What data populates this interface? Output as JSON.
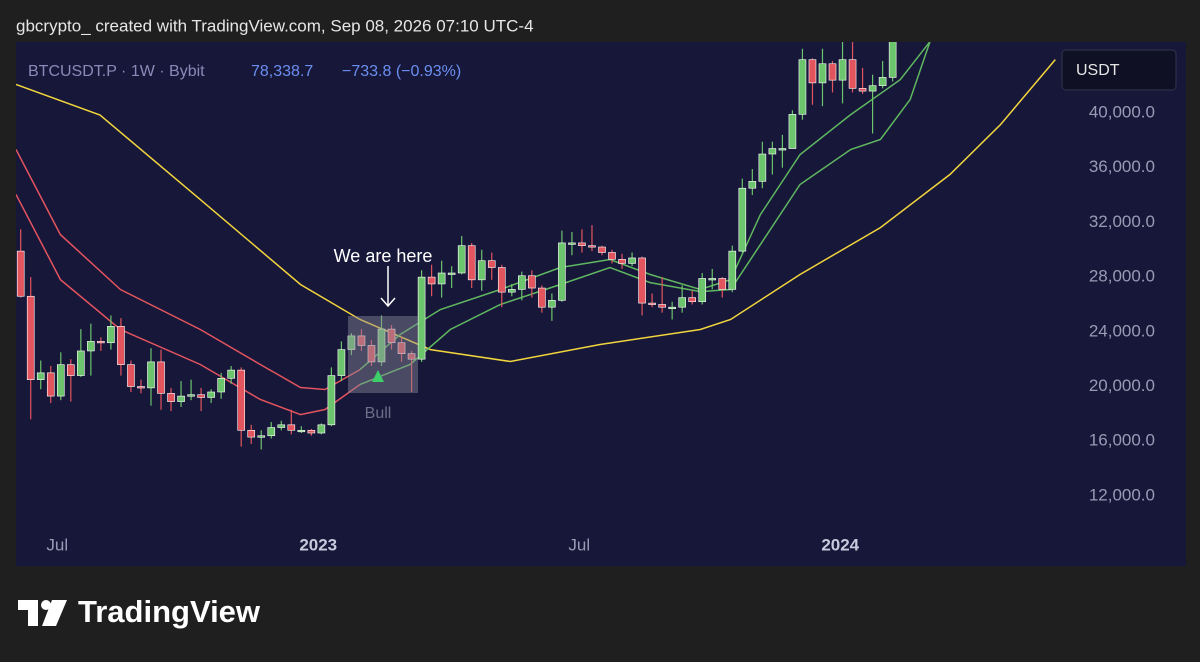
{
  "header": "gbcrypto_ created with TradingView.com, Sep 08, 2026 07:10 UTC-4",
  "footer": {
    "brand": "TradingView"
  },
  "chart_data": {
    "type": "candlestick",
    "symbol": "BTCUSDT.P · 1W · Bybit",
    "last_price": "78,338.7",
    "change": "−733.8 (−0.93%)",
    "currency": "USDT",
    "up_color": "#6cc46c",
    "down_color": "#e2545e",
    "xlim": [
      2022.421,
      2024.421
    ],
    "xticks": [
      {
        "value": 2022.5,
        "label": "Jul"
      },
      {
        "value": 2023.0,
        "label": "2023"
      },
      {
        "value": 2023.5,
        "label": "Jul"
      },
      {
        "value": 2024.0,
        "label": "2024"
      }
    ],
    "ylim": [
      6950,
      45190
    ],
    "yticks": [
      {
        "value": 12000,
        "label": "12,000.0"
      },
      {
        "value": 16000,
        "label": "16,000.0"
      },
      {
        "value": 20000,
        "label": "20,000.0"
      },
      {
        "value": 24000,
        "label": "24,000.0"
      },
      {
        "value": 28000,
        "label": "28,000.0"
      },
      {
        "value": 32000,
        "label": "32,000.0"
      },
      {
        "value": 36000,
        "label": "36,000.0"
      },
      {
        "value": 40000,
        "label": "40,000.0"
      }
    ],
    "x": [
      2022.43,
      2022.4492,
      2022.4684,
      2022.4876,
      2022.5068,
      2022.526,
      2022.5452,
      2022.5644,
      2022.5836,
      2022.6028,
      2022.622,
      2022.6412,
      2022.6604,
      2022.6796,
      2022.6988,
      2022.718,
      2022.7372,
      2022.7564,
      2022.7756,
      2022.7948,
      2022.814,
      2022.8332,
      2022.8524,
      2022.8716,
      2022.8908,
      2022.91,
      2022.9292,
      2022.9484,
      2022.9676,
      2022.9868,
      2023.006,
      2023.0252,
      2023.0444,
      2023.0636,
      2023.0828,
      2023.102,
      2023.1212,
      2023.1404,
      2023.1596,
      2023.1788,
      2023.198,
      2023.2172,
      2023.2364,
      2023.2556,
      2023.2748,
      2023.294,
      2023.3132,
      2023.3324,
      2023.3516,
      2023.3708,
      2023.39,
      2023.4092,
      2023.4284,
      2023.4476,
      2023.4668,
      2023.486,
      2023.5052,
      2023.5244,
      2023.5436,
      2023.5628,
      2023.582,
      2023.6012,
      2023.6204,
      2023.6396,
      2023.6588,
      2023.678,
      2023.6972,
      2023.7164,
      2023.7356,
      2023.7548,
      2023.774,
      2023.7932,
      2023.8124,
      2023.8316,
      2023.8508,
      2023.87,
      2023.8892,
      2023.9084,
      2023.9276,
      2023.9468,
      2023.966,
      2023.9852,
      2024.0044,
      2024.0236,
      2024.0428,
      2024.062,
      2024.0812,
      2024.1004
    ],
    "open": [
      29900,
      26600,
      20500,
      21000,
      19300,
      21600,
      20800,
      22600,
      23300,
      23200,
      24400,
      21600,
      20000,
      19900,
      21800,
      19500,
      18900,
      19300,
      19400,
      19200,
      19600,
      20600,
      21200,
      16800,
      16300,
      16400,
      17000,
      17200,
      16800,
      16800,
      16600,
      17200,
      20800,
      22700,
      23700,
      23000,
      21800,
      24200,
      23200,
      22400,
      22000,
      28000,
      27500,
      28300,
      28300,
      30300,
      27800,
      29200,
      28700,
      26900,
      27100,
      28100,
      27200,
      25800,
      26300,
      30500,
      30500,
      30300,
      30200,
      29800,
      29300,
      29000,
      29400,
      26100,
      26000,
      25800,
      25800,
      26500,
      26200,
      27900,
      27900,
      27100,
      29900,
      34500,
      35000,
      37000,
      37400,
      37400,
      39900,
      43900,
      42200,
      43600,
      42400,
      43900,
      41800,
      41600,
      42000,
      42600
    ],
    "high": [
      31500,
      28000,
      21900,
      21500,
      22500,
      22000,
      24200,
      24600,
      23600,
      25200,
      25000,
      21900,
      20500,
      22800,
      22700,
      19900,
      20400,
      20500,
      19900,
      19800,
      21000,
      21500,
      21400,
      17200,
      16800,
      17400,
      17500,
      18300,
      17100,
      16900,
      17300,
      21400,
      23300,
      23900,
      24200,
      23400,
      25200,
      24500,
      23600,
      22600,
      28500,
      28900,
      29200,
      28800,
      31000,
      30500,
      30000,
      29800,
      28900,
      27500,
      28400,
      28500,
      27400,
      26800,
      31400,
      31300,
      31500,
      31800,
      30300,
      30000,
      29700,
      29800,
      29500,
      26800,
      28000,
      26200,
      27400,
      27000,
      28300,
      28600,
      28000,
      30300,
      35200,
      35900,
      37900,
      37900,
      38400,
      40200,
      44700,
      44000,
      44700,
      43800,
      45900,
      48900,
      43300,
      42800,
      43800,
      48900
    ],
    "low": [
      26500,
      17600,
      19800,
      18800,
      19000,
      18900,
      20700,
      20800,
      22600,
      22700,
      20800,
      19600,
      19500,
      18600,
      18300,
      18200,
      18500,
      19000,
      18200,
      18800,
      19100,
      20200,
      15600,
      15800,
      15400,
      16200,
      16800,
      16500,
      16600,
      16400,
      16500,
      17100,
      20400,
      22300,
      22600,
      21500,
      21500,
      22700,
      21800,
      19600,
      21800,
      26600,
      26500,
      27200,
      28200,
      27200,
      27000,
      27800,
      25800,
      26600,
      26300,
      26500,
      25400,
      24800,
      26200,
      29600,
      29800,
      29900,
      29600,
      29000,
      28600,
      28800,
      25200,
      25800,
      25400,
      24900,
      25400,
      26000,
      26000,
      27100,
      26500,
      26900,
      29800,
      34000,
      34500,
      35500,
      36000,
      37400,
      39500,
      40600,
      40500,
      41500,
      40700,
      41500,
      41400,
      38500,
      41800,
      42300
    ],
    "close": [
      26600,
      20500,
      21000,
      19300,
      21600,
      20800,
      22600,
      23300,
      23200,
      24400,
      21600,
      20000,
      19900,
      21800,
      19500,
      18900,
      19300,
      19400,
      19200,
      19600,
      20600,
      21200,
      16800,
      16300,
      16400,
      17000,
      17200,
      16800,
      16800,
      16600,
      17200,
      20800,
      22700,
      23700,
      23000,
      21800,
      24200,
      23200,
      22400,
      22000,
      28000,
      27500,
      28300,
      28300,
      30300,
      27800,
      29200,
      28700,
      26900,
      27100,
      28100,
      27200,
      25800,
      26300,
      30500,
      30500,
      30300,
      30200,
      29800,
      29300,
      29000,
      29400,
      26100,
      26000,
      25800,
      25800,
      26500,
      26200,
      27900,
      27900,
      27100,
      29900,
      34500,
      35000,
      37000,
      37400,
      37400,
      39900,
      43900,
      42200,
      43600,
      42400,
      43900,
      41800,
      41600,
      42000,
      42600,
      48300
    ],
    "lines": [
      {
        "color": "#f2d53c",
        "x": [
          2022.421,
          2022.582,
          2022.774,
          2022.966,
          2023.08,
          2023.215,
          2023.368,
          2023.54,
          2023.732,
          2023.79,
          2023.923,
          2024.077,
          2024.21,
          2024.307,
          2024.412
        ],
        "values": [
          42080,
          39850,
          33670,
          27460,
          24900,
          22700,
          21830,
          23070,
          24170,
          24900,
          28190,
          31620,
          35500,
          39150,
          43900
        ]
      },
      {
        "color": "#e2545e",
        "x": [
          2022.421,
          2022.506,
          2022.621,
          2022.774,
          2022.889,
          2022.966,
          2023.013,
          2023.08
        ],
        "values": [
          37330,
          31110,
          27090,
          24170,
          21610,
          19930,
          19780,
          21240
        ]
      },
      {
        "color": "#e2545e",
        "x": [
          2022.421,
          2022.506,
          2022.621,
          2022.774,
          2022.889,
          2022.966,
          2023.013,
          2023.08
        ],
        "values": [
          34040,
          27820,
          24170,
          21610,
          19050,
          17950,
          18320,
          20150
        ]
      },
      {
        "color": "#5fb85f",
        "x": [
          2023.08,
          2023.157,
          2023.234,
          2023.349,
          2023.464,
          2023.559,
          2023.636,
          2023.732,
          2023.79,
          2023.847,
          2023.923,
          2024.02,
          2024.115,
          2024.172
        ],
        "values": [
          21240,
          23800,
          25630,
          27090,
          28700,
          29290,
          28190,
          27090,
          27820,
          32570,
          36960,
          39880,
          42440,
          45220
        ]
      },
      {
        "color": "#5fb85f",
        "x": [
          2023.08,
          2023.176,
          2023.253,
          2023.349,
          2023.464,
          2023.559,
          2023.636,
          2023.732,
          2023.79,
          2023.847,
          2023.923,
          2024.02,
          2024.077,
          2024.134,
          2024.172
        ],
        "values": [
          20150,
          21610,
          24170,
          26000,
          27460,
          28700,
          27600,
          26940,
          27090,
          30380,
          34770,
          37330,
          38060,
          40990,
          45220
        ]
      }
    ],
    "annotations": {
      "marker": "We are here",
      "signal": "Bull"
    }
  }
}
